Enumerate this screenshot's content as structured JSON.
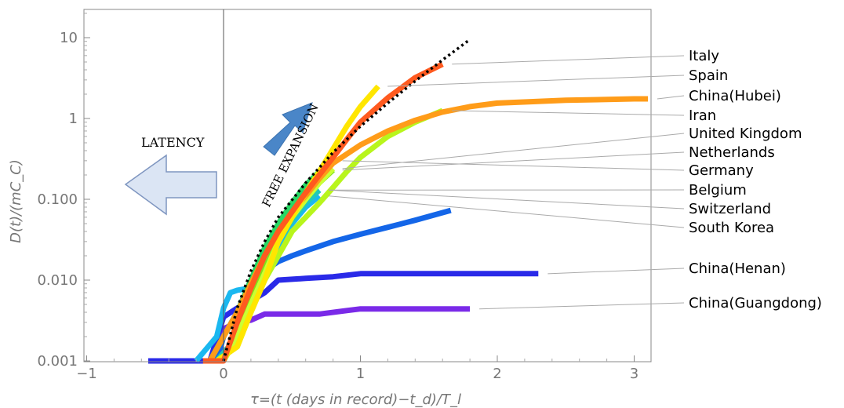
{
  "chart_data": {
    "type": "line",
    "title": "",
    "xlabel": "τ=(t (days in record)−t_d)/T_l",
    "ylabel": "D(t)/(mC_C)",
    "xlim": [
      -1,
      3.1
    ],
    "ylim": [
      0.001,
      20
    ],
    "yscale": "log",
    "xticks": [
      -1,
      0,
      1,
      2,
      3
    ],
    "xtick_labels": [
      "−1",
      "0",
      "1",
      "2",
      "3"
    ],
    "yticks": [
      0.001,
      0.01,
      0.1,
      1,
      10
    ],
    "ytick_labels": [
      "0.001",
      "0.010",
      "0.100",
      "1",
      "10"
    ],
    "grid": false,
    "legend": "right, labels connected to curves by leader lines",
    "annotations": {
      "latency": "LATENCY",
      "free_expansion": "FREE EXPANSION"
    },
    "reference_curve": {
      "style": "dotted black",
      "x": [
        0.0,
        0.1,
        0.2,
        0.3,
        0.4,
        0.6,
        0.8,
        1.0,
        1.2,
        1.4,
        1.6,
        1.8
      ],
      "y": [
        0.001,
        0.0045,
        0.013,
        0.03,
        0.06,
        0.16,
        0.38,
        0.8,
        1.55,
        2.9,
        5.3,
        9.5
      ]
    },
    "series": [
      {
        "name": "Italy",
        "color": "#ff5a1f",
        "x": [
          -0.15,
          0.0,
          0.1,
          0.2,
          0.3,
          0.4,
          0.5,
          0.6,
          0.7,
          0.8,
          0.9,
          1.0,
          1.2,
          1.4,
          1.6
        ],
        "y": [
          0.001,
          0.001,
          0.003,
          0.008,
          0.02,
          0.04,
          0.07,
          0.12,
          0.2,
          0.33,
          0.55,
          0.9,
          1.8,
          3.2,
          4.7
        ]
      },
      {
        "name": "Spain",
        "color": "#ffe600",
        "x": [
          -0.05,
          0.1,
          0.2,
          0.3,
          0.4,
          0.5,
          0.6,
          0.7,
          0.8,
          0.9,
          1.0,
          1.13
        ],
        "y": [
          0.001,
          0.0015,
          0.004,
          0.01,
          0.03,
          0.06,
          0.12,
          0.22,
          0.42,
          0.8,
          1.4,
          2.5
        ]
      },
      {
        "name": "China(Hubei)",
        "color": "#ff9c19",
        "x": [
          -0.1,
          0.0,
          0.1,
          0.2,
          0.3,
          0.4,
          0.5,
          0.6,
          0.7,
          0.8,
          1.0,
          1.2,
          1.4,
          1.6,
          1.8,
          2.0,
          2.5,
          3.0,
          3.1
        ],
        "y": [
          0.001,
          0.002,
          0.004,
          0.009,
          0.02,
          0.04,
          0.07,
          0.11,
          0.18,
          0.28,
          0.47,
          0.7,
          0.95,
          1.2,
          1.4,
          1.55,
          1.68,
          1.75,
          1.75
        ]
      },
      {
        "name": "Iran",
        "color": "#b8f51c",
        "x": [
          -0.05,
          0.1,
          0.2,
          0.3,
          0.4,
          0.5,
          0.6,
          0.7,
          0.8,
          0.9,
          1.0,
          1.2,
          1.4,
          1.6
        ],
        "y": [
          0.001,
          0.0015,
          0.004,
          0.01,
          0.02,
          0.04,
          0.06,
          0.09,
          0.14,
          0.22,
          0.33,
          0.6,
          0.9,
          1.25
        ]
      },
      {
        "name": "United Kingdom",
        "color": "#ccff33",
        "x": [
          0.0,
          0.1,
          0.2,
          0.3,
          0.4,
          0.5,
          0.6,
          0.7,
          0.8
        ],
        "y": [
          0.001,
          0.002,
          0.005,
          0.012,
          0.03,
          0.06,
          0.1,
          0.16,
          0.24
        ]
      },
      {
        "name": "Netherlands",
        "color": "#7ce31b",
        "x": [
          0.0,
          0.1,
          0.2,
          0.3,
          0.4,
          0.5,
          0.6,
          0.7,
          0.8
        ],
        "y": [
          0.001,
          0.002,
          0.006,
          0.014,
          0.03,
          0.06,
          0.1,
          0.16,
          0.23
        ]
      },
      {
        "name": "Germany",
        "color": "#29d966",
        "x": [
          -0.1,
          0.0,
          0.1,
          0.2,
          0.3,
          0.4,
          0.5,
          0.6,
          0.7,
          0.8
        ],
        "y": [
          0.001,
          0.002,
          0.004,
          0.01,
          0.025,
          0.05,
          0.09,
          0.15,
          0.22,
          0.3
        ]
      },
      {
        "name": "Belgium",
        "color": "#22c9b8",
        "x": [
          -0.05,
          0.1,
          0.2,
          0.3,
          0.4,
          0.5,
          0.6,
          0.7
        ],
        "y": [
          0.001,
          0.002,
          0.006,
          0.014,
          0.03,
          0.055,
          0.09,
          0.13
        ]
      },
      {
        "name": "Switzerland",
        "color": "#1aa3e0",
        "x": [
          -0.1,
          0.0,
          0.1,
          0.2,
          0.3,
          0.4,
          0.5,
          0.6,
          0.7
        ],
        "y": [
          0.001,
          0.002,
          0.004,
          0.01,
          0.02,
          0.04,
          0.07,
          0.1,
          0.13
        ]
      },
      {
        "name": "South Korea",
        "color": "#1ab8f0",
        "x": [
          -0.2,
          -0.05,
          0.0,
          0.05,
          0.1,
          0.2,
          0.3,
          0.4,
          0.5,
          0.6,
          0.7
        ],
        "y": [
          0.001,
          0.002,
          0.0045,
          0.007,
          0.0075,
          0.008,
          0.01,
          0.025,
          0.05,
          0.08,
          0.11
        ]
      },
      {
        "name": "China(Henan)",
        "color": "#2a2ae8",
        "x": [
          -0.55,
          -0.1,
          0.0,
          0.1,
          0.2,
          0.3,
          0.4,
          0.6,
          0.8,
          1.0,
          1.5,
          2.0,
          2.3
        ],
        "y": [
          0.001,
          0.001,
          0.0035,
          0.0045,
          0.0055,
          0.007,
          0.01,
          0.0105,
          0.011,
          0.012,
          0.012,
          0.012,
          0.012
        ]
      },
      {
        "name": "China(Guangdong)",
        "color": "#7a2ae8",
        "x": [
          -0.3,
          -0.1,
          0.0,
          0.1,
          0.2,
          0.3,
          0.5,
          0.7,
          0.9,
          1.0,
          1.3,
          1.6,
          1.8
        ],
        "y": [
          0.001,
          0.001,
          0.0025,
          0.003,
          0.0032,
          0.0038,
          0.0038,
          0.0038,
          0.0042,
          0.0044,
          0.0044,
          0.0044,
          0.0044
        ]
      },
      {
        "name": "",
        "color": "#1466e8",
        "x": [
          -0.05,
          0.0,
          0.1,
          0.2,
          0.3,
          0.4,
          0.5,
          0.6,
          0.8,
          1.0,
          1.2,
          1.4,
          1.66
        ],
        "y": [
          0.001,
          0.002,
          0.004,
          0.008,
          0.013,
          0.017,
          0.02,
          0.023,
          0.03,
          0.037,
          0.045,
          0.055,
          0.073
        ]
      }
    ],
    "labels": [
      {
        "text": "Italy",
        "series": 0
      },
      {
        "text": "Spain",
        "series": 1
      },
      {
        "text": "China(Hubei)",
        "series": 2
      },
      {
        "text": "Iran",
        "series": 3
      },
      {
        "text": "United Kingdom",
        "series": 4
      },
      {
        "text": "Netherlands",
        "series": 5
      },
      {
        "text": "Germany",
        "series": 6
      },
      {
        "text": "Belgium",
        "series": 7
      },
      {
        "text": "Switzerland",
        "series": 8
      },
      {
        "text": "South Korea",
        "series": 9
      },
      {
        "text": "China(Henan)",
        "series": 10
      },
      {
        "text": "China(Guangdong)",
        "series": 11
      }
    ]
  }
}
